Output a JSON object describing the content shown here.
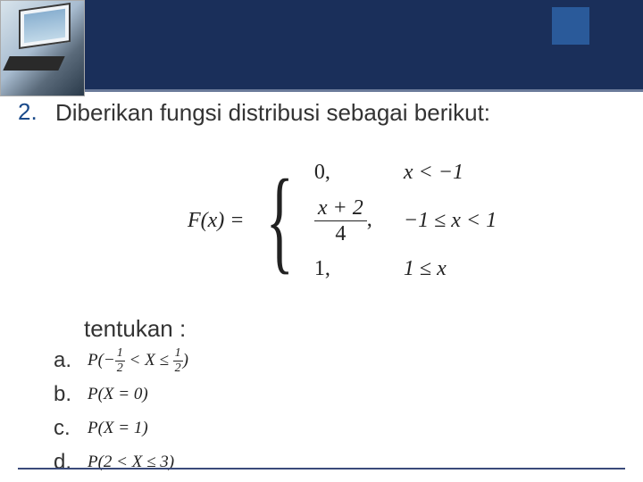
{
  "colors": {
    "header_bg": "#1a2f5a",
    "accent_bg": "#2a5a9a",
    "q_number_color": "#1a4a8a",
    "text_color": "#333333",
    "math_color": "#222222",
    "footer_line": "#3a4a7a",
    "header_underline": "#6a7a9a"
  },
  "question": {
    "number": "2.",
    "text": "Diberikan fungsi distribusi sebagai berikut:"
  },
  "formula": {
    "lhs": "F(x) =",
    "cases": [
      {
        "value": "0,",
        "condition": "x < −1",
        "type": "plain"
      },
      {
        "value_num": "x + 2",
        "value_den": "4",
        "value_suffix": ",",
        "condition": "−1 ≤ x < 1",
        "type": "fraction"
      },
      {
        "value": "1,",
        "condition": "1 ≤ x",
        "type": "plain"
      }
    ]
  },
  "tentukan": "tentukan :",
  "subitems": [
    {
      "letter": "a.",
      "math_prefix": "P(−",
      "f1_num": "1",
      "f1_den": "2",
      "math_mid": " < X ≤ ",
      "f2_num": "1",
      "f2_den": "2",
      "math_suffix": ")"
    },
    {
      "letter": "b.",
      "math": "P(X = 0)"
    },
    {
      "letter": "c.",
      "math": "P(X = 1)"
    },
    {
      "letter": "d.",
      "math": "P(2 < X ≤ 3)"
    }
  ]
}
